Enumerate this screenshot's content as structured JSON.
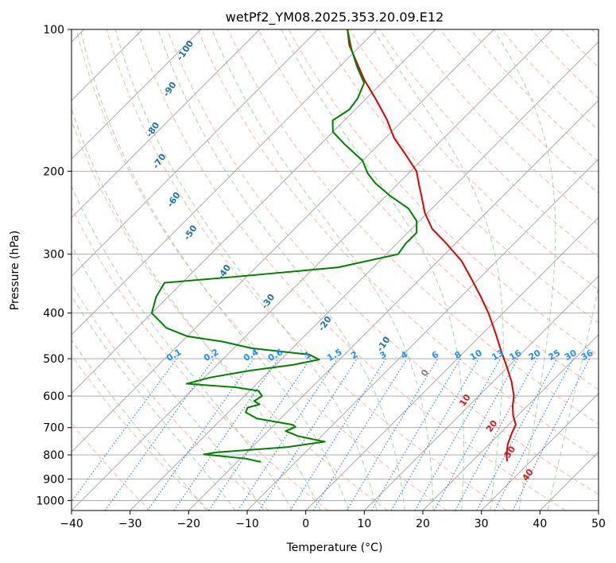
{
  "chart_data": {
    "type": "line",
    "chart_kind": "skew-T log-p diagram",
    "title": "wetPf2_YM08.2025.353.20.09.E12",
    "xlabel": "Temperature (°C)",
    "ylabel": "Pressure (hPa)",
    "xlim": [
      -40,
      50
    ],
    "ylim": [
      1050,
      100
    ],
    "y_scale": "log",
    "x_ticks": [
      -40,
      -30,
      -20,
      -10,
      0,
      10,
      20,
      30,
      40,
      50
    ],
    "x_tick_labels": [
      "−40",
      "−30",
      "−20",
      "−10",
      "0",
      "10",
      "20",
      "30",
      "40",
      "50"
    ],
    "y_ticks": [
      100,
      200,
      300,
      400,
      500,
      600,
      700,
      800,
      900,
      1000
    ],
    "y_tick_labels": [
      "100",
      "200",
      "300",
      "400",
      "500",
      "600",
      "700",
      "800",
      "900",
      "1000"
    ],
    "grid": true,
    "colors": {
      "temperature": "#e00000",
      "dewpoint": "#008000",
      "isotherm": "#a0a0a0",
      "dry_adiabat": "#f5a080",
      "moist_adiabat": "#90c890",
      "mixing_ratio": "#1e7fd8",
      "mixing_ratio_label": "#1e90ff",
      "theta_label": "#2471a3",
      "dry_label": "#d02020"
    },
    "series": [
      {
        "key": "temperature",
        "color": "#e00000",
        "points": [
          [
            826,
            26.0
          ],
          [
            800,
            24.8
          ],
          [
            760,
            23.2
          ],
          [
            720,
            22.0
          ],
          [
            690,
            21.2
          ],
          [
            660,
            19.2
          ],
          [
            630,
            17.5
          ],
          [
            600,
            16.0
          ],
          [
            560,
            13.2
          ],
          [
            520,
            9.8
          ],
          [
            480,
            6.0
          ],
          [
            440,
            2.0
          ],
          [
            400,
            -2.5
          ],
          [
            370,
            -6.5
          ],
          [
            340,
            -11.0
          ],
          [
            310,
            -16.0
          ],
          [
            285,
            -21.5
          ],
          [
            265,
            -26.5
          ],
          [
            245,
            -30.5
          ],
          [
            228,
            -33.5
          ],
          [
            215,
            -36.0
          ],
          [
            200,
            -39.0
          ],
          [
            185,
            -43.5
          ],
          [
            170,
            -48.5
          ],
          [
            155,
            -53.0
          ],
          [
            140,
            -58.5
          ],
          [
            128,
            -63.5
          ],
          [
            117,
            -68.0
          ],
          [
            108,
            -72.0
          ],
          [
            100,
            -75.0
          ]
        ]
      },
      {
        "key": "dewpoint",
        "color": "#008000",
        "points": [
          [
            828,
            -16.0
          ],
          [
            815,
            -19.0
          ],
          [
            798,
            -27.0
          ],
          [
            790,
            -25.0
          ],
          [
            770,
            -14.0
          ],
          [
            750,
            -8.5
          ],
          [
            730,
            -14.0
          ],
          [
            712,
            -17.0
          ],
          [
            698,
            -16.0
          ],
          [
            690,
            -17.0
          ],
          [
            670,
            -24.0
          ],
          [
            650,
            -27.0
          ],
          [
            635,
            -27.5
          ],
          [
            625,
            -26.0
          ],
          [
            615,
            -27.5
          ],
          [
            600,
            -27.0
          ],
          [
            585,
            -28.5
          ],
          [
            575,
            -33.0
          ],
          [
            565,
            -42.0
          ],
          [
            548,
            -39.0
          ],
          [
            530,
            -33.5
          ],
          [
            515,
            -27.0
          ],
          [
            502,
            -23.5
          ],
          [
            490,
            -26.0
          ],
          [
            475,
            -37.0
          ],
          [
            460,
            -43.0
          ],
          [
            448,
            -50.0
          ],
          [
            430,
            -55.0
          ],
          [
            400,
            -60.0
          ],
          [
            370,
            -62.0
          ],
          [
            345,
            -63.0
          ],
          [
            335,
            -52.0
          ],
          [
            320,
            -36.0
          ],
          [
            300,
            -28.0
          ],
          [
            285,
            -28.5
          ],
          [
            270,
            -28.5
          ],
          [
            255,
            -30.5
          ],
          [
            240,
            -34.0
          ],
          [
            225,
            -39.5
          ],
          [
            212,
            -44.0
          ],
          [
            202,
            -47.0
          ],
          [
            190,
            -50.0
          ],
          [
            175,
            -56.0
          ],
          [
            165,
            -60.0
          ],
          [
            156,
            -62.0
          ],
          [
            148,
            -61.0
          ],
          [
            140,
            -61.5
          ],
          [
            130,
            -63.0
          ],
          [
            120,
            -67.0
          ],
          [
            110,
            -71.0
          ],
          [
            100,
            -75.0
          ]
        ]
      }
    ],
    "adiabat_labels": [
      {
        "text": "-100",
        "theta": -100
      },
      {
        "text": "-90",
        "theta": -90
      },
      {
        "text": "-80",
        "theta": -80
      },
      {
        "text": "-70",
        "theta": -70
      },
      {
        "text": "-60",
        "theta": -60
      },
      {
        "text": "-50",
        "theta": -50
      },
      {
        "text": "-40",
        "theta": -40
      },
      {
        "text": "-30",
        "theta": -30
      },
      {
        "text": "-20",
        "theta": -20
      },
      {
        "text": "-10",
        "theta": -10
      },
      {
        "text": "0",
        "theta": 0
      },
      {
        "text": "10",
        "theta": 10
      },
      {
        "text": "20",
        "theta": 20
      },
      {
        "text": "30",
        "theta": 30
      },
      {
        "text": "40",
        "theta": 40
      }
    ],
    "mixing_ratio_labels": [
      "0.1",
      "0.2",
      "0.4",
      "0.6",
      "1",
      "1.5",
      "2",
      "3",
      "4",
      "6",
      "8",
      "10",
      "13",
      "16",
      "20",
      "25",
      "30",
      "36"
    ]
  }
}
